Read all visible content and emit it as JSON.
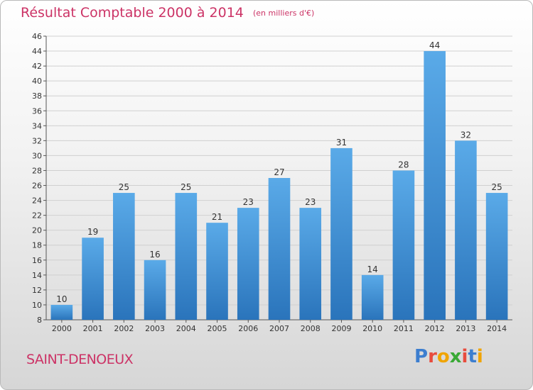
{
  "header": {
    "title": "Résultat Comptable 2000 à 2014",
    "subtitle": "(en milliers d'€)"
  },
  "commune": "SAINT-DENOEUX",
  "logo": {
    "text": "Proxiti",
    "letter_colors": [
      "#3c7ecf",
      "#e84c3d",
      "#f0a400",
      "#39a935",
      "#e84c3d",
      "#3c7ecf",
      "#f0a400"
    ]
  },
  "chart_data": {
    "type": "bar",
    "title": "Résultat Comptable 2000 à 2014",
    "subtitle": "(en milliers d'€)",
    "categories": [
      "2000",
      "2001",
      "2002",
      "2003",
      "2004",
      "2005",
      "2006",
      "2007",
      "2008",
      "2009",
      "2010",
      "2011",
      "2012",
      "2013",
      "2014"
    ],
    "values": [
      10,
      19,
      25,
      16,
      25,
      21,
      23,
      27,
      23,
      31,
      14,
      28,
      44,
      32,
      25
    ],
    "ylim": [
      8,
      46
    ],
    "yticks": [
      8,
      10,
      12,
      14,
      16,
      18,
      20,
      22,
      24,
      26,
      28,
      30,
      32,
      34,
      36,
      38,
      40,
      42,
      44,
      46
    ],
    "grid": true,
    "bar_color": "#3b8fd6",
    "bar_color_light": "#5aaae8",
    "bar_color_dark": "#2a74bb",
    "show_value_labels": true
  }
}
